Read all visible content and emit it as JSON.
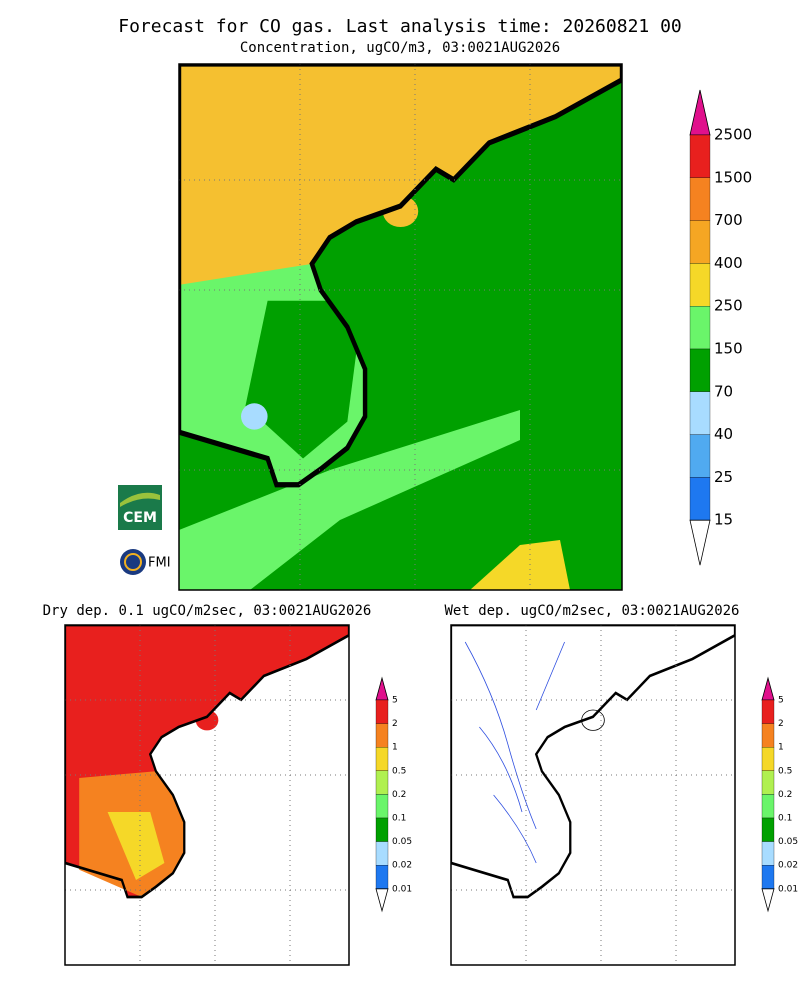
{
  "main": {
    "title": "Forecast for CO gas. Last analysis time: 20260821 00",
    "subtitle": "Concentration, ugCO/m3, 03:0021AUG2026",
    "colorbar": {
      "labels": [
        2500,
        1500,
        700,
        400,
        250,
        150,
        70,
        40,
        25,
        15
      ],
      "colors": [
        "#e8201e",
        "#f58220",
        "#f5a623",
        "#f5d828",
        "#6af56a",
        "#00a000",
        "#a8dcff",
        "#50aaf0",
        "#1e78f0"
      ],
      "over_color": "#e0108c",
      "under_color": "#ffffff"
    }
  },
  "dry": {
    "title": "Dry dep. 0.1 ugCO/m2sec, 03:0021AUG2026",
    "colorbar": {
      "labels": [
        5,
        2,
        1,
        0.5,
        0.2,
        0.1,
        0.05,
        0.02,
        0.01
      ],
      "colors": [
        "#e8201e",
        "#f58220",
        "#f5d828",
        "#b0f050",
        "#6af56a",
        "#00a000",
        "#a8dcff",
        "#1e78f0"
      ],
      "over_color": "#e0108c",
      "under_color": "#ffffff"
    }
  },
  "wet": {
    "title": "Wet dep. ugCO/m2sec, 03:0021AUG2026",
    "colorbar": {
      "labels": [
        5,
        2,
        1,
        0.5,
        0.2,
        0.1,
        0.05,
        0.02,
        0.01
      ],
      "colors": [
        "#e8201e",
        "#f58220",
        "#f5d828",
        "#b0f050",
        "#6af56a",
        "#00a000",
        "#a8dcff",
        "#1e78f0"
      ],
      "over_color": "#e0108c",
      "under_color": "#ffffff"
    }
  },
  "logos": {
    "cem": "CEM",
    "fmi": "FMI"
  }
}
